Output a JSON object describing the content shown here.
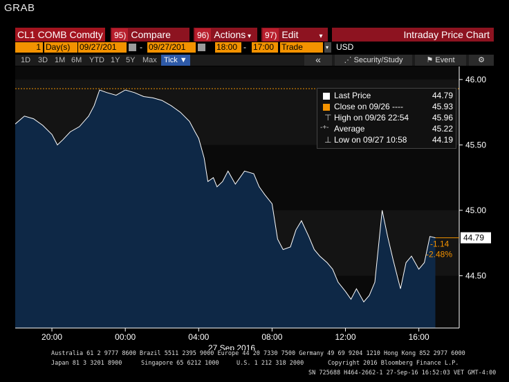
{
  "window": {
    "title": "GRAB"
  },
  "toolbar": {
    "ticker": "CL1 COMB Comdty",
    "compare_num": "95)",
    "compare_label": "Compare",
    "actions_num": "96)",
    "actions_label": "Actions",
    "edit_num": "97)",
    "edit_label": "Edit",
    "chart_title": "Intraday Price Chart"
  },
  "daterow": {
    "period_count": "1",
    "period_unit": "Day(s)",
    "start_date": "09/27/201",
    "end_date": "09/27/201",
    "start_time": "18:00",
    "end_time": "17:00",
    "field": "Trade",
    "currency": "USD"
  },
  "nav": {
    "ranges": [
      "1D",
      "3D",
      "1M",
      "6M",
      "YTD",
      "1Y",
      "5Y",
      "Max"
    ],
    "tick_label": "Tick ▼",
    "back_label": "«",
    "security_label": "Security/Study",
    "event_label": "Event",
    "gear_label": "⚙"
  },
  "legend": {
    "last_label": "Last Price",
    "last_value": "44.79",
    "close_label": "Close on 09/26 ----",
    "close_value": "45.93",
    "high_label": "High on 09/26 22:54",
    "high_value": "45.96",
    "avg_label": "Average",
    "avg_value": "45.22",
    "low_label": "Low on 09/27 10:58",
    "low_value": "44.19"
  },
  "annotations": {
    "last_price_tag": "44.79",
    "change": "-1.14",
    "change_pct": "-2.48%"
  },
  "colors": {
    "area": "#0e2846",
    "line": "#ffffff",
    "close_line": "#f39200",
    "toolbar": "#8d1320",
    "tick_button": "#2e5aa8"
  },
  "chart_data": {
    "type": "area",
    "ylim": [
      44.1,
      46.1
    ],
    "yticks": [
      44.5,
      45.0,
      45.5,
      46.0
    ],
    "ytick_labels": [
      "44.50",
      "45.00",
      "45.50",
      "46.00"
    ],
    "xticks": [
      20,
      24,
      28,
      32,
      36,
      40
    ],
    "xtick_labels": [
      "20:00",
      "00:00",
      "04:00",
      "08:00",
      "12:00",
      "16:00"
    ],
    "xlim": [
      18,
      42.2
    ],
    "date_label": "27 Sep 2016",
    "previous_close": 45.93,
    "x": [
      18.0,
      18.5,
      19.0,
      19.5,
      20.0,
      20.3,
      20.6,
      21.0,
      21.5,
      22.0,
      22.3,
      22.6,
      23.0,
      23.5,
      24.0,
      24.5,
      25.0,
      25.5,
      26.0,
      26.5,
      27.0,
      27.5,
      27.8,
      28.0,
      28.3,
      28.5,
      28.8,
      29.0,
      29.3,
      29.6,
      30.0,
      30.5,
      31.0,
      31.3,
      31.6,
      32.0,
      32.3,
      32.6,
      33.0,
      33.3,
      33.6,
      34.0,
      34.3,
      34.6,
      35.0,
      35.3,
      35.6,
      36.0,
      36.3,
      36.6,
      37.0,
      37.3,
      37.6,
      38.0,
      38.3,
      38.6,
      39.0,
      39.3,
      39.6,
      40.0,
      40.3,
      40.6,
      40.9
    ],
    "y": [
      45.66,
      45.72,
      45.7,
      45.65,
      45.58,
      45.5,
      45.54,
      45.6,
      45.64,
      45.72,
      45.8,
      45.92,
      45.9,
      45.88,
      45.92,
      45.9,
      45.87,
      45.86,
      45.84,
      45.8,
      45.75,
      45.68,
      45.6,
      45.55,
      45.4,
      45.22,
      45.25,
      45.18,
      45.22,
      45.3,
      45.2,
      45.3,
      45.28,
      45.18,
      45.12,
      45.05,
      44.78,
      44.7,
      44.72,
      44.85,
      44.92,
      44.8,
      44.7,
      44.65,
      44.6,
      44.55,
      44.45,
      44.38,
      44.32,
      44.4,
      44.3,
      44.35,
      44.45,
      45.0,
      44.8,
      44.62,
      44.4,
      44.6,
      44.65,
      44.55,
      44.6,
      44.8,
      44.79
    ]
  },
  "footer": {
    "line1": "Australia 61 2 9777 8600 Brazil 5511 2395 9000 Europe 44 20 7330 7500 Germany 49 69 9204 1210 Hong Kong 852 2977 6000",
    "line2a": "Japan 81 3 3201 8900",
    "line2b": "Singapore 65 6212 1000",
    "line2c": "U.S. 1 212 318 2000",
    "line2d": "Copyright 2016 Bloomberg Finance L.P.",
    "line3": "SN 725688 H464-2662-1 27-Sep-16 16:52:03 VET  GMT-4:00"
  }
}
